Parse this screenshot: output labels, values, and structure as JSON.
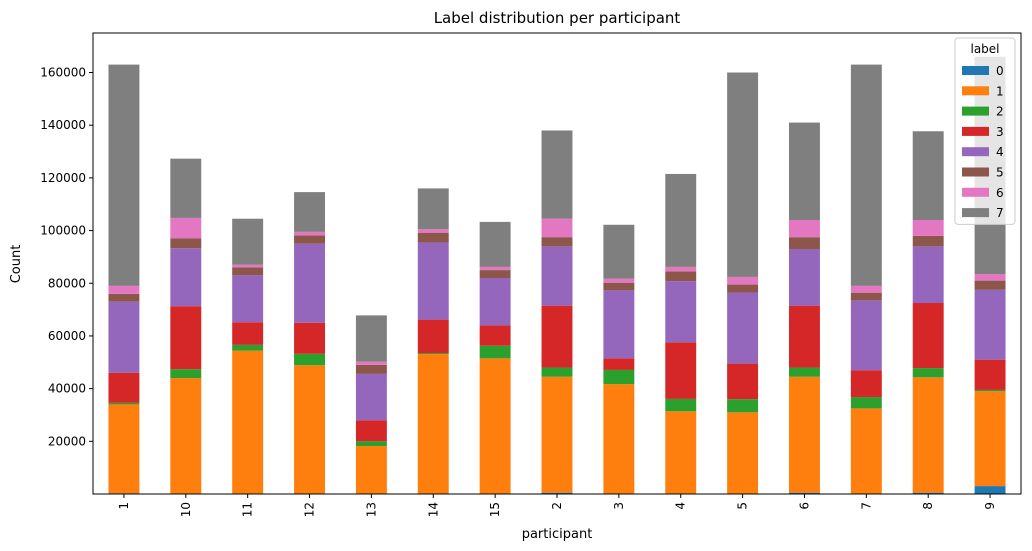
{
  "chart_data": {
    "type": "bar",
    "stacked": true,
    "title": "Label distribution per participant",
    "xlabel": "participant",
    "ylabel": "Count",
    "categories": [
      "1",
      "10",
      "11",
      "12",
      "13",
      "14",
      "15",
      "2",
      "3",
      "4",
      "5",
      "6",
      "7",
      "8",
      "9"
    ],
    "ylim": [
      0,
      175000
    ],
    "yticks": [
      20000,
      40000,
      60000,
      80000,
      100000,
      120000,
      140000,
      160000
    ],
    "legend": {
      "title": "label",
      "position": "top-right"
    },
    "series": [
      {
        "name": "0",
        "color": "#1f77b4",
        "values": [
          300,
          200,
          200,
          200,
          200,
          200,
          200,
          500,
          200,
          200,
          200,
          500,
          200,
          500,
          3000
        ]
      },
      {
        "name": "1",
        "color": "#ff7f0e",
        "values": [
          33700,
          43800,
          54200,
          48700,
          18000,
          52900,
          51300,
          44000,
          41500,
          31200,
          30800,
          44000,
          32300,
          43800,
          36000
        ]
      },
      {
        "name": "2",
        "color": "#2ca02c",
        "values": [
          600,
          3400,
          2200,
          4300,
          1800,
          400,
          4800,
          3500,
          5400,
          4700,
          5000,
          3500,
          4300,
          3500,
          500
        ]
      },
      {
        "name": "3",
        "color": "#d62728",
        "values": [
          11400,
          23900,
          8600,
          11800,
          8000,
          12700,
          7700,
          23500,
          4400,
          21500,
          13500,
          23500,
          10200,
          24700,
          11500
        ]
      },
      {
        "name": "4",
        "color": "#9467bd",
        "values": [
          27000,
          22000,
          17800,
          30000,
          17600,
          29300,
          18000,
          22500,
          25800,
          23200,
          27000,
          21500,
          26500,
          21500,
          26500
        ]
      },
      {
        "name": "5",
        "color": "#8c564b",
        "values": [
          3000,
          3700,
          3000,
          3200,
          3400,
          3700,
          3000,
          3500,
          2800,
          3700,
          3000,
          4500,
          2800,
          4000,
          3500
        ]
      },
      {
        "name": "6",
        "color": "#e377c2",
        "values": [
          3000,
          7800,
          1000,
          1300,
          1200,
          1300,
          1200,
          7000,
          1600,
          1700,
          2900,
          6500,
          2700,
          6000,
          2500
        ]
      },
      {
        "name": "7",
        "color": "#7f7f7f",
        "values": [
          84000,
          22500,
          17500,
          15100,
          17600,
          15500,
          17100,
          33500,
          20500,
          35300,
          77600,
          37000,
          84000,
          33700,
          82500
        ]
      }
    ]
  }
}
